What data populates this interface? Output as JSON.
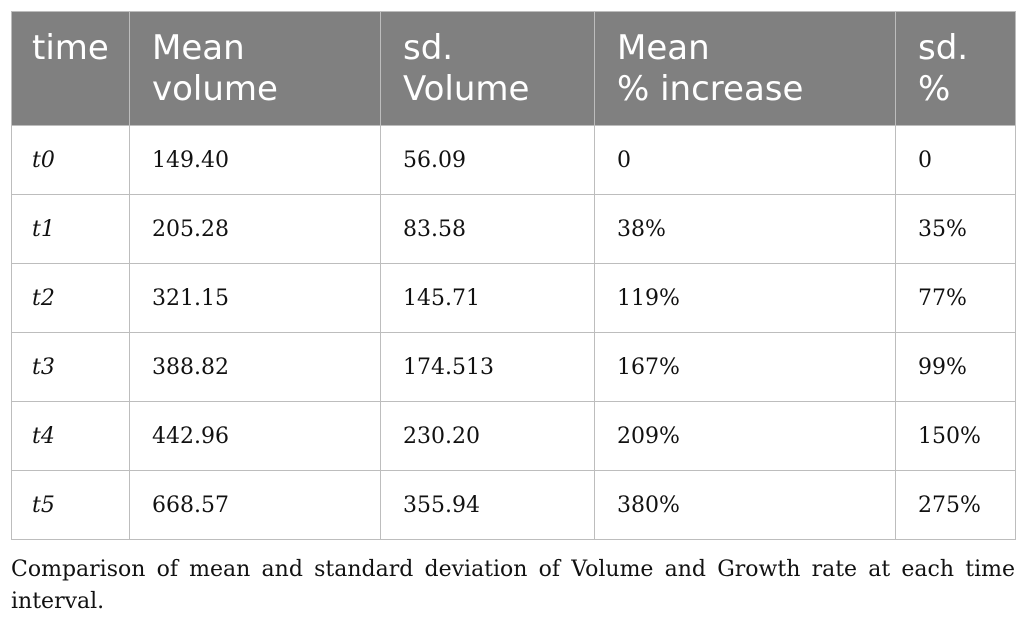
{
  "table": {
    "headers": [
      [
        "time"
      ],
      [
        "Mean",
        "volume"
      ],
      [
        "sd.",
        "Volume"
      ],
      [
        "Mean",
        "% increase"
      ],
      [
        "sd.",
        "%"
      ]
    ],
    "rows": [
      [
        "t0",
        "149.40",
        "56.09",
        "0",
        "0"
      ],
      [
        "t1",
        "205.28",
        "83.58",
        "38%",
        "35%"
      ],
      [
        "t2",
        "321.15",
        "145.71",
        "119%",
        "77%"
      ],
      [
        "t3",
        "388.82",
        "174.513",
        "167%",
        "99%"
      ],
      [
        "t4",
        "442.96",
        "230.20",
        "209%",
        "150%"
      ],
      [
        "t5",
        "668.57",
        "355.94",
        "380%",
        "275%"
      ]
    ],
    "header_color": "#808080",
    "border_color": "#bdbdbd"
  },
  "caption": "Comparison of mean and standard deviation of Volume and Growth rate at each time interval."
}
